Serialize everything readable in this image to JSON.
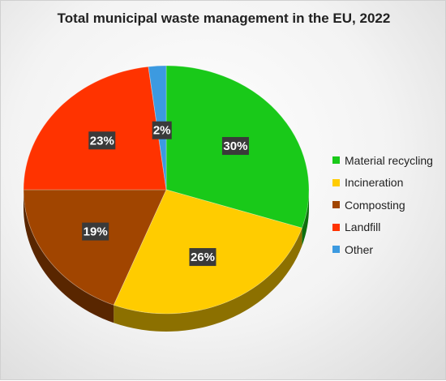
{
  "chart_data": {
    "type": "pie",
    "title": "Total municipal waste management in the EU, 2022",
    "categories": [
      "Material recycling",
      "Incineration",
      "Composting",
      "Landfill",
      "Other"
    ],
    "values": [
      30,
      26,
      19,
      23,
      2
    ],
    "labels": [
      "30%",
      "26%",
      "19%",
      "23%",
      "2%"
    ],
    "colors": [
      "#19c919",
      "#ffcc00",
      "#a14500",
      "#ff3300",
      "#3c9ae0"
    ],
    "legend_position": "right"
  }
}
